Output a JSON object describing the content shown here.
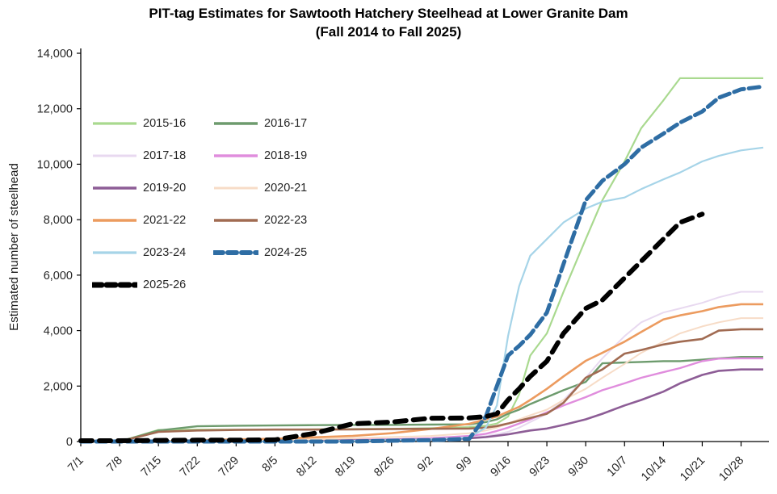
{
  "chart_data": {
    "type": "line",
    "title": "PIT-tag Estimates for Sawtooth Hatchery Steelhead at Lower Granite Dam",
    "subtitle": "(Fall 2014 to Fall 2025)",
    "ylabel": "Estimated number of steelhead",
    "xlabel": "",
    "ylim": [
      0,
      14000
    ],
    "y_ticks": [
      0,
      2000,
      4000,
      6000,
      8000,
      10000,
      12000,
      14000
    ],
    "x_tick_labels": [
      "7/1",
      "7/8",
      "7/15",
      "7/22",
      "7/29",
      "8/5",
      "8/12",
      "8/19",
      "8/26",
      "9/2",
      "9/9",
      "9/16",
      "9/23",
      "9/30",
      "10/7",
      "10/14",
      "10/21",
      "10/28"
    ],
    "x_tick_days": [
      0,
      7,
      14,
      21,
      28,
      35,
      42,
      49,
      56,
      63,
      70,
      77,
      84,
      91,
      98,
      105,
      112,
      119
    ],
    "x_max_day": 123,
    "grid": false,
    "legend_position": "inside-top-left",
    "axis_color": "#000000",
    "x_days": [
      0,
      7,
      14,
      21,
      28,
      35,
      42,
      49,
      56,
      63,
      70,
      73,
      75,
      77,
      79,
      81,
      84,
      87,
      91,
      94,
      98,
      101,
      105,
      108,
      112,
      115,
      119,
      123
    ],
    "x_day_labels": [
      "7/1",
      "7/8",
      "7/15",
      "7/22",
      "7/29",
      "8/5",
      "8/12",
      "8/19",
      "8/26",
      "9/2",
      "9/9",
      "9/12",
      "9/14",
      "9/16",
      "9/18",
      "9/20",
      "9/23",
      "9/26",
      "9/30",
      "10/3",
      "10/7",
      "10/10",
      "10/14",
      "10/17",
      "10/21",
      "10/24",
      "10/28",
      "11/1"
    ],
    "series": [
      {
        "name": "2015-16",
        "color": "#a9d98f",
        "width": 2.2,
        "dash": null,
        "values": [
          0,
          0,
          420,
          430,
          430,
          430,
          440,
          450,
          460,
          480,
          520,
          570,
          650,
          900,
          1700,
          3100,
          3900,
          5400,
          7300,
          8700,
          10100,
          11300,
          12300,
          13100,
          13100,
          13100,
          13100,
          13100
        ]
      },
      {
        "name": "2016-17",
        "color": "#6d9b6d",
        "width": 2.4,
        "dash": null,
        "values": [
          0,
          0,
          400,
          550,
          570,
          580,
          590,
          600,
          600,
          610,
          620,
          700,
          800,
          1000,
          1150,
          1350,
          1600,
          1850,
          2150,
          2820,
          2850,
          2870,
          2900,
          2900,
          2950,
          3000,
          3050,
          3050
        ]
      },
      {
        "name": "2017-18",
        "color": "#e8d9f0",
        "width": 2.0,
        "dash": null,
        "values": [
          0,
          0,
          0,
          30,
          30,
          40,
          50,
          60,
          80,
          100,
          150,
          200,
          260,
          350,
          500,
          700,
          1000,
          1500,
          2300,
          3000,
          3800,
          4300,
          4650,
          4800,
          5000,
          5200,
          5400,
          5400
        ]
      },
      {
        "name": "2018-19",
        "color": "#e08ddd",
        "width": 2.4,
        "dash": null,
        "values": [
          0,
          0,
          0,
          0,
          20,
          30,
          40,
          60,
          80,
          120,
          200,
          280,
          380,
          500,
          650,
          800,
          1050,
          1300,
          1600,
          1850,
          2100,
          2300,
          2500,
          2650,
          2900,
          2990,
          3000,
          3000
        ]
      },
      {
        "name": "2019-20",
        "color": "#8d5d96",
        "width": 2.6,
        "dash": null,
        "values": [
          0,
          0,
          0,
          0,
          0,
          20,
          30,
          40,
          60,
          80,
          120,
          160,
          210,
          260,
          330,
          400,
          470,
          600,
          800,
          1000,
          1300,
          1500,
          1800,
          2100,
          2400,
          2550,
          2600,
          2600
        ]
      },
      {
        "name": "2020-21",
        "color": "#f7dcc7",
        "width": 2.0,
        "dash": null,
        "values": [
          0,
          0,
          0,
          0,
          30,
          50,
          80,
          120,
          160,
          200,
          300,
          400,
          500,
          650,
          800,
          950,
          1150,
          1500,
          1900,
          2300,
          2800,
          3200,
          3600,
          3900,
          4150,
          4300,
          4450,
          4450
        ]
      },
      {
        "name": "2021-22",
        "color": "#ec9b5f",
        "width": 2.6,
        "dash": null,
        "values": [
          0,
          0,
          0,
          50,
          80,
          100,
          150,
          200,
          300,
          450,
          640,
          800,
          900,
          1080,
          1250,
          1500,
          1900,
          2350,
          2910,
          3200,
          3600,
          3950,
          4400,
          4550,
          4700,
          4850,
          4950,
          4950
        ]
      },
      {
        "name": "2022-23",
        "color": "#a16b52",
        "width": 2.6,
        "dash": null,
        "values": [
          0,
          0,
          350,
          400,
          420,
          430,
          430,
          440,
          450,
          460,
          470,
          500,
          560,
          650,
          750,
          850,
          1000,
          1400,
          2300,
          2600,
          3170,
          3300,
          3500,
          3600,
          3700,
          4000,
          4050,
          4050
        ]
      },
      {
        "name": "2023-24",
        "color": "#a6d4e8",
        "width": 2.2,
        "dash": null,
        "values": [
          0,
          0,
          0,
          0,
          0,
          0,
          0,
          30,
          50,
          80,
          150,
          500,
          1300,
          3800,
          5600,
          6700,
          7300,
          7900,
          8400,
          8650,
          8800,
          9100,
          9450,
          9700,
          10100,
          10300,
          10500,
          10600
        ]
      },
      {
        "name": "2024-25",
        "color": "#2e6da4",
        "width": 5,
        "dash": "13 6",
        "values": [
          0,
          0,
          0,
          0,
          0,
          0,
          0,
          0,
          30,
          50,
          100,
          900,
          2000,
          3100,
          3450,
          3850,
          4650,
          6400,
          8700,
          9400,
          10000,
          10600,
          11100,
          11500,
          11900,
          12400,
          12700,
          12800
        ]
      },
      {
        "name": "2025-26",
        "color": "#000000",
        "width": 6,
        "dash": "14 9",
        "values": [
          30,
          30,
          40,
          50,
          50,
          60,
          290,
          640,
          700,
          840,
          850,
          900,
          1000,
          1500,
          1900,
          2350,
          2900,
          3900,
          4800,
          5100,
          5900,
          6500,
          7300,
          7900,
          8200,
          null,
          null,
          null
        ]
      }
    ]
  }
}
